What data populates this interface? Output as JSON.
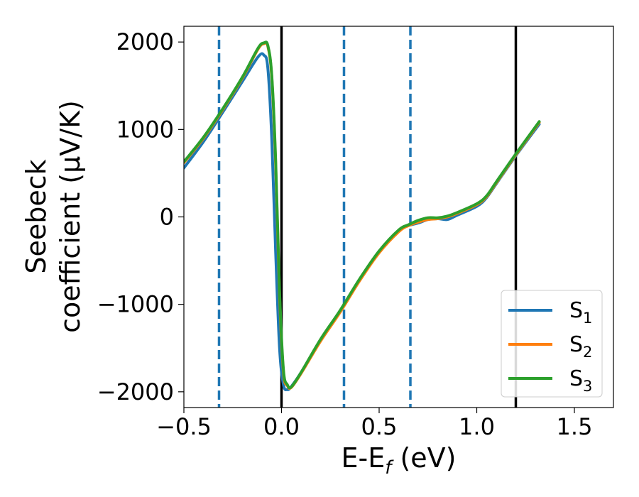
{
  "chart_data": {
    "type": "line",
    "title": "",
    "xlabel": "E-E_f (eV)",
    "xlabel_parts": {
      "main": "E-E",
      "sub": "f",
      "tail": " (eV)"
    },
    "ylabel_lines": [
      "Seebeck",
      "coefficient  (μV/K)"
    ],
    "xlim": [
      -0.5,
      1.7
    ],
    "ylim": [
      -2180,
      2180
    ],
    "xticks": [
      -0.5,
      0.0,
      0.5,
      1.0,
      1.5
    ],
    "xtick_labels": [
      "−0.5",
      "0.0",
      "0.5",
      "1.0",
      "1.5"
    ],
    "yticks": [
      -2000,
      -1000,
      0,
      1000,
      2000
    ],
    "ytick_labels": [
      "−2000",
      "−1000",
      "0",
      "1000",
      "2000"
    ],
    "grid": false,
    "legend_position": "lower-right",
    "vertical_lines": [
      {
        "x": -0.32,
        "style": "dashed",
        "color": "#1f77b4"
      },
      {
        "x": 0.0,
        "style": "solid",
        "color": "#000000"
      },
      {
        "x": 0.32,
        "style": "dashed",
        "color": "#1f77b4"
      },
      {
        "x": 0.66,
        "style": "dashed",
        "color": "#1f77b4"
      },
      {
        "x": 1.2,
        "style": "solid",
        "color": "#000000"
      }
    ],
    "series": [
      {
        "name": "S",
        "sub": "1",
        "color": "#1f77b4",
        "x": [
          -0.5,
          -0.4,
          -0.3,
          -0.2,
          -0.12,
          -0.09,
          -0.07,
          -0.05,
          -0.03,
          -0.01,
          0.01,
          0.03,
          0.05,
          0.1,
          0.2,
          0.3,
          0.4,
          0.5,
          0.6,
          0.65,
          0.7,
          0.75,
          0.8,
          0.85,
          0.9,
          1.0,
          1.05,
          1.1,
          1.2,
          1.32
        ],
        "y": [
          560,
          860,
          1200,
          1550,
          1830,
          1850,
          1700,
          900,
          -400,
          -1500,
          -1920,
          -1975,
          -1940,
          -1780,
          -1410,
          -1080,
          -720,
          -400,
          -160,
          -100,
          -70,
          -30,
          -20,
          -30,
          20,
          120,
          220,
          380,
          700,
          1060
        ]
      },
      {
        "name": "S",
        "sub": "2",
        "color": "#ff7f0e",
        "x": [
          -0.5,
          -0.4,
          -0.3,
          -0.2,
          -0.12,
          -0.09,
          -0.07,
          -0.05,
          -0.03,
          -0.01,
          0.01,
          0.03,
          0.05,
          0.1,
          0.2,
          0.3,
          0.4,
          0.5,
          0.6,
          0.65,
          0.7,
          0.75,
          0.8,
          0.85,
          0.9,
          1.0,
          1.05,
          1.1,
          1.2,
          1.32
        ],
        "y": [
          620,
          900,
          1230,
          1590,
          1920,
          1980,
          1950,
          1600,
          600,
          -900,
          -1780,
          -1930,
          -1950,
          -1790,
          -1420,
          -1090,
          -730,
          -410,
          -170,
          -100,
          -60,
          -30,
          -20,
          0,
          40,
          140,
          230,
          390,
          710,
          1080
        ]
      },
      {
        "name": "S",
        "sub": "3",
        "color": "#2ca02c",
        "x": [
          -0.5,
          -0.4,
          -0.3,
          -0.2,
          -0.12,
          -0.09,
          -0.07,
          -0.05,
          -0.03,
          -0.01,
          0.01,
          0.03,
          0.05,
          0.1,
          0.2,
          0.3,
          0.4,
          0.5,
          0.6,
          0.65,
          0.7,
          0.75,
          0.8,
          0.85,
          0.9,
          1.0,
          1.05,
          1.1,
          1.2,
          1.32
        ],
        "y": [
          630,
          910,
          1240,
          1600,
          1930,
          1990,
          1960,
          1620,
          650,
          -850,
          -1750,
          -1920,
          -1945,
          -1780,
          -1400,
          -1070,
          -710,
          -390,
          -150,
          -90,
          -40,
          -10,
          -10,
          10,
          50,
          150,
          240,
          400,
          720,
          1090
        ]
      }
    ]
  }
}
